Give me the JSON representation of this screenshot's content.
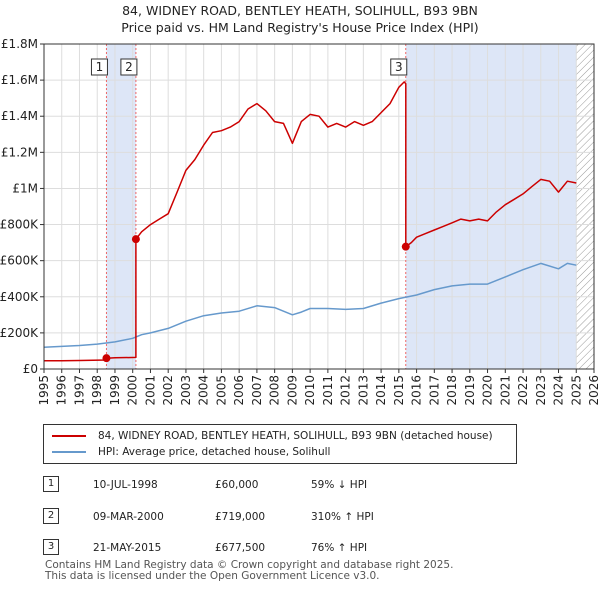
{
  "title": {
    "line1": "84, WIDNEY ROAD, BENTLEY HEATH, SOLIHULL, B93 9BN",
    "line2": "Price paid vs. HM Land Registry's House Price Index (HPI)"
  },
  "chart_data": {
    "type": "line",
    "title": "84, WIDNEY ROAD, BENTLEY HEATH, SOLIHULL, B93 9BN — Price paid vs. HM Land Registry's House Price Index (HPI)",
    "xlim": [
      1995,
      2026
    ],
    "ylim": [
      0,
      1800000
    ],
    "x_ticks": [
      1995,
      1996,
      1997,
      1998,
      1999,
      2000,
      2001,
      2002,
      2003,
      2004,
      2005,
      2006,
      2007,
      2008,
      2009,
      2010,
      2011,
      2012,
      2013,
      2014,
      2015,
      2016,
      2017,
      2018,
      2019,
      2020,
      2021,
      2022,
      2023,
      2024,
      2025,
      2026
    ],
    "y_ticks": [
      0,
      200000,
      400000,
      600000,
      800000,
      1000000,
      1200000,
      1400000,
      1600000,
      1800000
    ],
    "y_tick_labels": [
      "£0",
      "£200K",
      "£400K",
      "£600K",
      "£800K",
      "£1M",
      "£1.2M",
      "£1.4M",
      "£1.6M",
      "£1.8M"
    ],
    "grid": true,
    "colors": {
      "property": "#cc0000",
      "hpi": "#6699cc",
      "shade": "#dde6f7",
      "vline": "#ee6666"
    },
    "series": [
      {
        "name": "84, WIDNEY ROAD, BENTLEY HEATH, SOLIHULL, B93 9BN (detached house)",
        "color": "#cc0000",
        "x": [
          1995.0,
          1996.0,
          1997.0,
          1998.52,
          1998.52,
          1999.0,
          2000.18,
          2000.18,
          2000.5,
          2001.0,
          2001.5,
          2002.0,
          2002.5,
          2003.0,
          2003.5,
          2004.0,
          2004.5,
          2005.0,
          2005.5,
          2006.0,
          2006.5,
          2007.0,
          2007.5,
          2008.0,
          2008.5,
          2009.0,
          2009.5,
          2010.0,
          2010.5,
          2011.0,
          2011.5,
          2012.0,
          2012.5,
          2013.0,
          2013.5,
          2014.0,
          2014.5,
          2015.0,
          2015.3,
          2015.39,
          2015.39,
          2015.7,
          2016.0,
          2016.5,
          2017.0,
          2017.5,
          2018.0,
          2018.5,
          2019.0,
          2019.5,
          2020.0,
          2020.5,
          2021.0,
          2021.5,
          2022.0,
          2022.5,
          2023.0,
          2023.5,
          2024.0,
          2024.5,
          2025.0
        ],
        "y": [
          46000,
          46000,
          47000,
          50000,
          60000,
          62000,
          64000,
          719000,
          760000,
          800000,
          830000,
          860000,
          980000,
          1100000,
          1160000,
          1240000,
          1310000,
          1320000,
          1340000,
          1370000,
          1440000,
          1470000,
          1430000,
          1370000,
          1360000,
          1250000,
          1370000,
          1410000,
          1400000,
          1340000,
          1360000,
          1340000,
          1370000,
          1350000,
          1370000,
          1420000,
          1470000,
          1560000,
          1590000,
          1580000,
          677500,
          700000,
          730000,
          750000,
          770000,
          790000,
          810000,
          830000,
          820000,
          830000,
          820000,
          870000,
          910000,
          940000,
          970000,
          1010000,
          1050000,
          1040000,
          980000,
          1040000,
          1030000
        ]
      },
      {
        "name": "HPI: Average price, detached house, Solihull",
        "color": "#6699cc",
        "x": [
          1995.0,
          1996.0,
          1997.0,
          1998.0,
          1999.0,
          2000.0,
          2000.5,
          2001.0,
          2002.0,
          2003.0,
          2004.0,
          2005.0,
          2006.0,
          2007.0,
          2008.0,
          2009.0,
          2009.5,
          2010.0,
          2011.0,
          2012.0,
          2013.0,
          2014.0,
          2015.0,
          2016.0,
          2017.0,
          2018.0,
          2019.0,
          2020.0,
          2021.0,
          2022.0,
          2023.0,
          2024.0,
          2024.5,
          2025.0
        ],
        "y": [
          120000,
          125000,
          130000,
          138000,
          150000,
          170000,
          190000,
          200000,
          225000,
          265000,
          295000,
          310000,
          320000,
          350000,
          340000,
          300000,
          315000,
          335000,
          335000,
          330000,
          335000,
          365000,
          390000,
          410000,
          440000,
          460000,
          470000,
          470000,
          510000,
          550000,
          585000,
          555000,
          585000,
          575000
        ]
      }
    ],
    "sales": [
      {
        "label": "1",
        "x": 1998.52,
        "y": 60000
      },
      {
        "label": "2",
        "x": 2000.18,
        "y": 719000
      },
      {
        "label": "3",
        "x": 2015.39,
        "y": 677500
      }
    ],
    "shaded_ranges": [
      [
        1998.52,
        2000.18
      ],
      [
        2015.39,
        2025.0
      ]
    ],
    "hatched_from": 2025.0
  },
  "legend": {
    "property_label": "84, WIDNEY ROAD, BENTLEY HEATH, SOLIHULL, B93 9BN (detached house)",
    "hpi_label": "HPI: Average price, detached house, Solihull"
  },
  "sales_table": [
    {
      "num": "1",
      "date": "10-JUL-1998",
      "price": "£60,000",
      "hpi": "59% ↓ HPI"
    },
    {
      "num": "2",
      "date": "09-MAR-2000",
      "price": "£719,000",
      "hpi": "310% ↑ HPI"
    },
    {
      "num": "3",
      "date": "21-MAY-2015",
      "price": "£677,500",
      "hpi": "76% ↑ HPI"
    }
  ],
  "footer": {
    "line1": "Contains HM Land Registry data © Crown copyright and database right 2025.",
    "line2": "This data is licensed under the Open Government Licence v3.0."
  }
}
